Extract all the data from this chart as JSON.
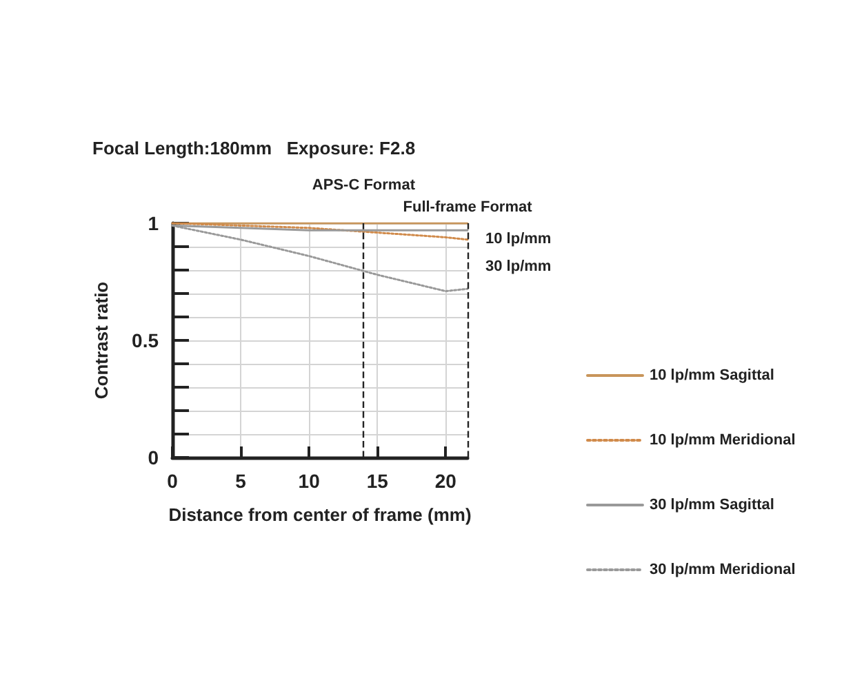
{
  "chart_data": {
    "type": "line",
    "title": "Focal Length:180mm   Exposure: F2.8",
    "xlabel": "Distance from center of frame (mm)",
    "ylabel": "Contrast ratio",
    "series": [
      {
        "name": "10 lp/mm Sagittal",
        "color": "#c8955a",
        "line_style": "solid",
        "x": [
          0,
          5,
          10,
          15,
          20,
          21.6
        ],
        "values": [
          1.0,
          1.0,
          1.0,
          1.0,
          1.0,
          1.0
        ]
      },
      {
        "name": "10 lp/mm Meridional",
        "color": "#d08a4a",
        "line_style": "dotted",
        "x": [
          0,
          5,
          10,
          15,
          20,
          21.6
        ],
        "values": [
          1.0,
          0.99,
          0.98,
          0.96,
          0.94,
          0.93
        ]
      },
      {
        "name": "30 lp/mm Sagittal",
        "color": "#999999",
        "line_style": "solid",
        "x": [
          0,
          5,
          10,
          15,
          20,
          21.6
        ],
        "values": [
          0.99,
          0.98,
          0.97,
          0.97,
          0.97,
          0.97
        ]
      },
      {
        "name": "30 lp/mm Meridional",
        "color": "#999999",
        "line_style": "dotted",
        "x": [
          0,
          5,
          10,
          15,
          20,
          21.6
        ],
        "values": [
          0.99,
          0.93,
          0.86,
          0.78,
          0.71,
          0.72
        ]
      }
    ],
    "xlim": [
      0,
      21.6
    ],
    "xticks": [
      0,
      5,
      10,
      15,
      20
    ],
    "ylim": [
      0,
      1
    ],
    "yticks": [
      0,
      {
        "value": 0.1,
        "label": null
      },
      {
        "value": 0.2,
        "label": null
      },
      {
        "value": 0.3,
        "label": null
      },
      {
        "value": 0.4,
        "label": null
      },
      0.5,
      {
        "value": 0.6,
        "label": null
      },
      {
        "value": 0.7,
        "label": null
      },
      {
        "value": 0.8,
        "label": null
      },
      {
        "value": 0.9,
        "label": null
      },
      1
    ],
    "ref_lines": [
      {
        "axis": "x",
        "value": 14,
        "label": "APS-C Format",
        "color": "#222222",
        "line_style": "dashed"
      },
      {
        "axis": "x",
        "value": 21.6,
        "label": "Full-frame Format",
        "color": "#222222",
        "line_style": "dashed"
      }
    ],
    "annotations": [
      "10 lp/mm",
      "30 lp/mm"
    ],
    "grid": true,
    "legend": "right",
    "marker": "none"
  }
}
